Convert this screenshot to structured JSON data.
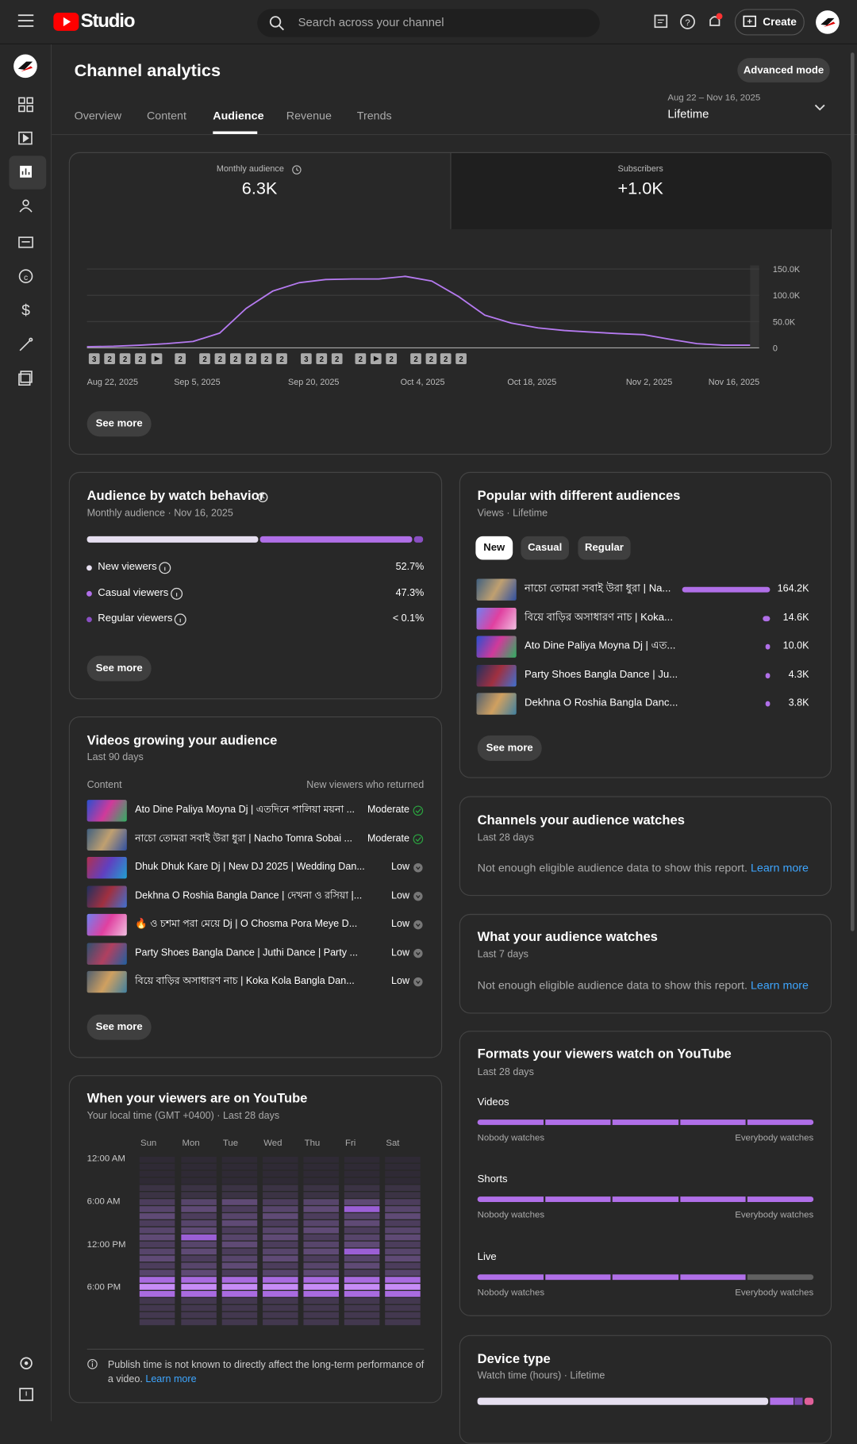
{
  "topbar": {
    "brand": "Studio",
    "search": "Search across your channel",
    "create": "Create"
  },
  "header": {
    "title": "Channel analytics",
    "advanced_mode": "Advanced mode",
    "tabs": [
      "Overview",
      "Content",
      "Audience",
      "Revenue",
      "Trends"
    ],
    "date_range": "Aug 22 – Nov 16, 2025",
    "period": "Lifetime"
  },
  "chart_data": {
    "type": "line",
    "metrics": [
      {
        "label": "Monthly audience",
        "value": "6.3K"
      },
      {
        "label": "Subscribers",
        "value": "+1.0K"
      }
    ],
    "values": [
      2000,
      3000,
      5000,
      8000,
      12000,
      28000,
      75000,
      108000,
      124000,
      130000,
      131000,
      131000,
      136000,
      127000,
      98000,
      62000,
      47000,
      38000,
      33000,
      30000,
      27000,
      25000,
      16000,
      8000,
      5000,
      5000
    ],
    "color": "#b57af0",
    "ylim": [
      0,
      150000
    ],
    "yticks": [
      0,
      {
        "value": 50000,
        "label": "50.0K"
      },
      {
        "value": 100000,
        "label": "100.0K"
      },
      {
        "value": 150000,
        "label": "150.0K"
      }
    ],
    "x_labels": [
      "Aug 22, 2025",
      "Sep 5, 2025",
      "Sep 20, 2025",
      "Oct 4, 2025",
      "Oct 18, 2025",
      "Nov 2, 2025",
      "Nov 16, 2025"
    ],
    "markers": [
      "3",
      "2",
      "2",
      "2",
      null,
      "2",
      "2",
      "2",
      "2",
      "2",
      "2",
      "2",
      "3",
      "2",
      "2",
      "2",
      null,
      "2",
      "2",
      "2",
      "2",
      "2"
    ],
    "see_more": "See more"
  },
  "watch_behavior": {
    "title": "Audience by watch behavior",
    "subtitle": "Monthly audience · Nov 16, 2025",
    "rows": [
      {
        "label": "New viewers",
        "value": "52.7%"
      },
      {
        "label": "Casual viewers",
        "value": "47.3%"
      },
      {
        "label": "Regular viewers",
        "value": "< 0.1%"
      }
    ],
    "see_more": "See more"
  },
  "popular": {
    "title": "Popular with different audiences",
    "subtitle": "Views · Lifetime",
    "chips": [
      "New",
      "Casual",
      "Regular"
    ],
    "rows": [
      {
        "title": "নাচো তোমরা সবাই উরা ধুরা | Na...",
        "views": "164.2K"
      },
      {
        "title": "বিয়ে বাড়ির অসাধারণ নাচ | Koka...",
        "views": "14.6K"
      },
      {
        "title": "Ato Dine Paliya Moyna Dj | এত...",
        "views": "10.0K"
      },
      {
        "title": "Party Shoes Bangla Dance | Ju...",
        "views": "4.3K"
      },
      {
        "title": "Dekhna O Roshia Bangla Danc...",
        "views": "3.8K"
      }
    ],
    "see_more": "See more"
  },
  "growing": {
    "title": "Videos growing your audience",
    "subtitle": "Last 90 days",
    "col_content": "Content",
    "col_returned": "New viewers who returned",
    "rows": [
      {
        "title": "Ato Dine Paliya Moyna Dj | এতদিনে পালিয়া ময়না ...",
        "level": "Moderate"
      },
      {
        "title": "নাচো তোমরা সবাই উরা ধুরা | Nacho Tomra Sobai ...",
        "level": "Moderate"
      },
      {
        "title": "Dhuk Dhuk Kare Dj | New DJ 2025 | Wedding Dan...",
        "level": "Low"
      },
      {
        "title": "Dekhna O Roshia Bangla Dance | দেখনা ও রসিয়া |...",
        "level": "Low"
      },
      {
        "title": "🔥 ও চশমা পরা মেয়ে Dj | O Chosma Pora Meye D...",
        "level": "Low"
      },
      {
        "title": "Party Shoes Bangla Dance | Juthi Dance | Party ...",
        "level": "Low"
      },
      {
        "title": "বিয়ে বাড়ির অসাধারণ নাচ | Koka Kola Bangla Dan...",
        "level": "Low"
      }
    ],
    "see_more": "See more"
  },
  "channels_watch": {
    "title": "Channels your audience watches",
    "subtitle": "Last 28 days",
    "message": "Not enough eligible audience data to show this report.",
    "link": "Learn more"
  },
  "what_watch": {
    "title": "What your audience watches",
    "subtitle": "Last 7 days",
    "message": "Not enough eligible audience data to show this report.",
    "link": "Learn more"
  },
  "formats": {
    "title": "Formats your viewers watch on YouTube",
    "subtitle": "Last 28 days",
    "rows": [
      {
        "label": "Videos",
        "min": "Nobody watches",
        "max": "Everybody watches"
      },
      {
        "label": "Shorts",
        "min": "Nobody watches",
        "max": "Everybody watches"
      },
      {
        "label": "Live",
        "min": "Nobody watches",
        "max": "Everybody watches"
      }
    ]
  },
  "when": {
    "title": "When your viewers are on YouTube",
    "subtitle": "Your local time (GMT +0400) · Last 28 days",
    "days": [
      "Sun",
      "Mon",
      "Tue",
      "Wed",
      "Thu",
      "Fri",
      "Sat"
    ],
    "times": [
      "12:00 AM",
      "6:00 AM",
      "12:00 PM",
      "6:00 PM"
    ],
    "note": "Publish time is not known to directly affect the long-term performance of a video.",
    "link": "Learn more"
  },
  "device": {
    "title": "Device type",
    "subtitle": "Watch time (hours) · Lifetime"
  }
}
